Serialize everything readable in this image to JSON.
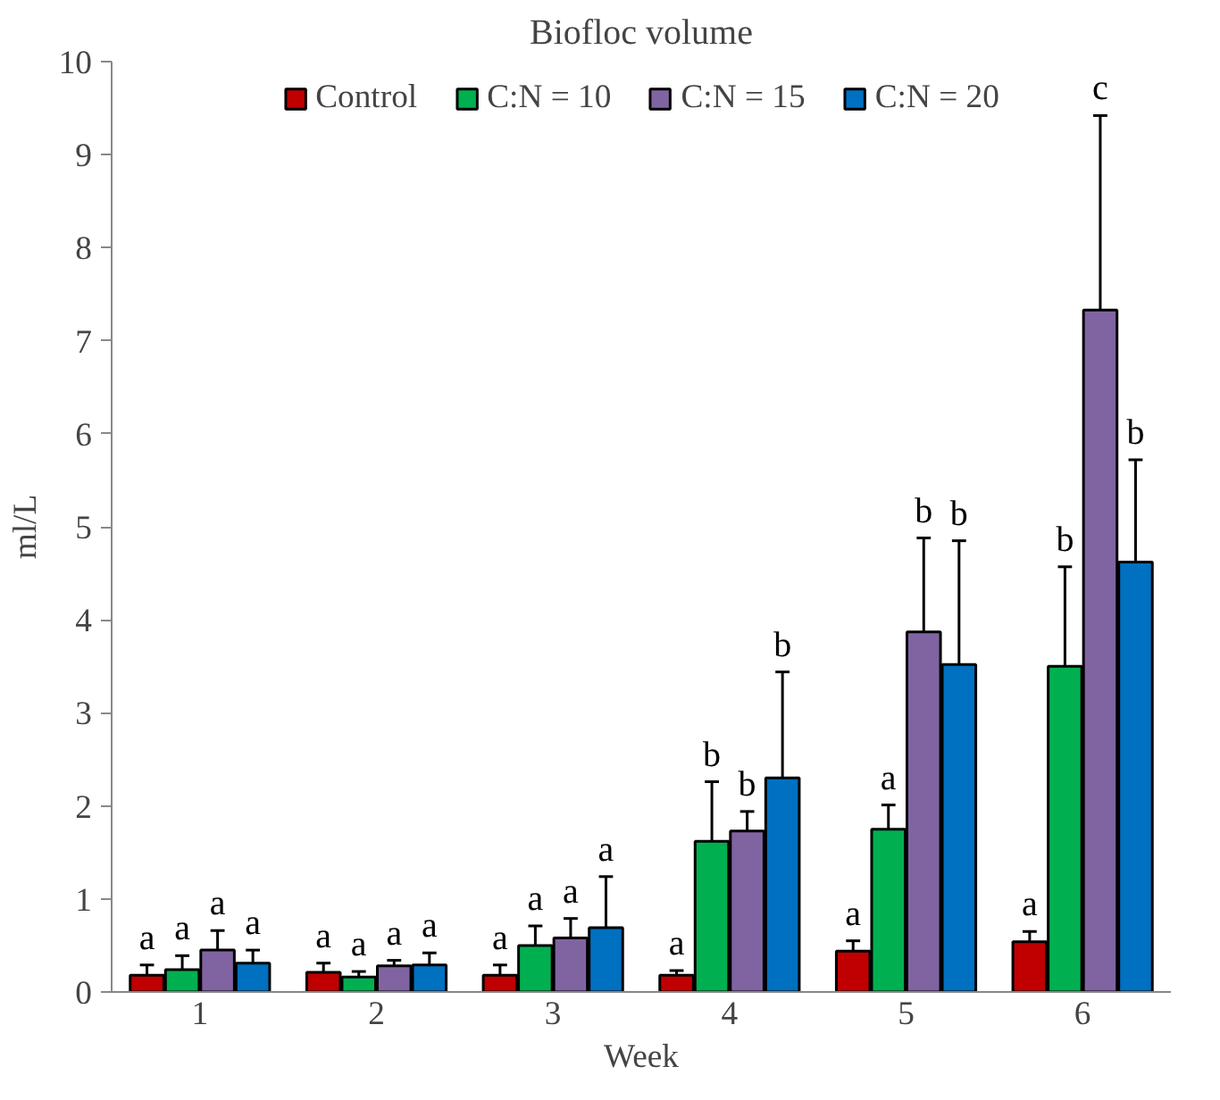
{
  "chart_data": {
    "type": "bar",
    "title": "Biofloc volume",
    "xlabel": "Week",
    "ylabel": "ml/L",
    "categories": [
      "1",
      "2",
      "3",
      "4",
      "5",
      "6"
    ],
    "series": [
      {
        "name": "Control",
        "color": "#c00000",
        "values": [
          0.18,
          0.21,
          0.18,
          0.18,
          0.44,
          0.54
        ],
        "errors": [
          [
            0.18,
            0.29
          ],
          [
            0.21,
            0.31
          ],
          [
            0.18,
            0.29
          ],
          [
            0.18,
            0.23
          ],
          [
            0.44,
            0.55
          ],
          [
            0.54,
            0.65
          ]
        ]
      },
      {
        "name": "C:N = 10",
        "color": "#00b050",
        "values": [
          0.24,
          0.16,
          0.5,
          1.62,
          1.75,
          3.5
        ],
        "errors": [
          [
            0.24,
            0.39
          ],
          [
            0.16,
            0.22
          ],
          [
            0.5,
            0.71
          ],
          [
            1.62,
            2.26
          ],
          [
            1.75,
            2.01
          ],
          [
            3.5,
            4.57
          ]
        ]
      },
      {
        "name": "C:N = 15",
        "color": "#8064a2",
        "values": [
          0.45,
          0.28,
          0.58,
          1.73,
          3.87,
          7.33
        ],
        "errors": [
          [
            0.45,
            0.66
          ],
          [
            0.28,
            0.34
          ],
          [
            0.58,
            0.79
          ],
          [
            1.73,
            1.94
          ],
          [
            3.87,
            4.88
          ],
          [
            7.33,
            9.42
          ]
        ]
      },
      {
        "name": "C:N = 20",
        "color": "#0070c0",
        "values": [
          0.31,
          0.29,
          0.69,
          2.3,
          3.52,
          4.62
        ],
        "errors": [
          [
            0.31,
            0.45
          ],
          [
            0.29,
            0.42
          ],
          [
            0.69,
            1.24
          ],
          [
            2.3,
            3.44
          ],
          [
            3.52,
            4.85
          ],
          [
            4.62,
            5.72
          ]
        ]
      }
    ],
    "ylim": [
      0,
      10
    ],
    "yticks": [
      0,
      1,
      2,
      3,
      4,
      5,
      6,
      7,
      8,
      9,
      10
    ],
    "grid": false,
    "legend": "top",
    "annotations": [
      "a",
      "a",
      "a",
      "a",
      "a",
      "a",
      "a",
      "a",
      "a",
      "a",
      "a",
      "a",
      "a",
      "b",
      "b",
      "b",
      "a",
      "a",
      "b",
      "b",
      "a",
      "b",
      "c",
      "b"
    ]
  }
}
